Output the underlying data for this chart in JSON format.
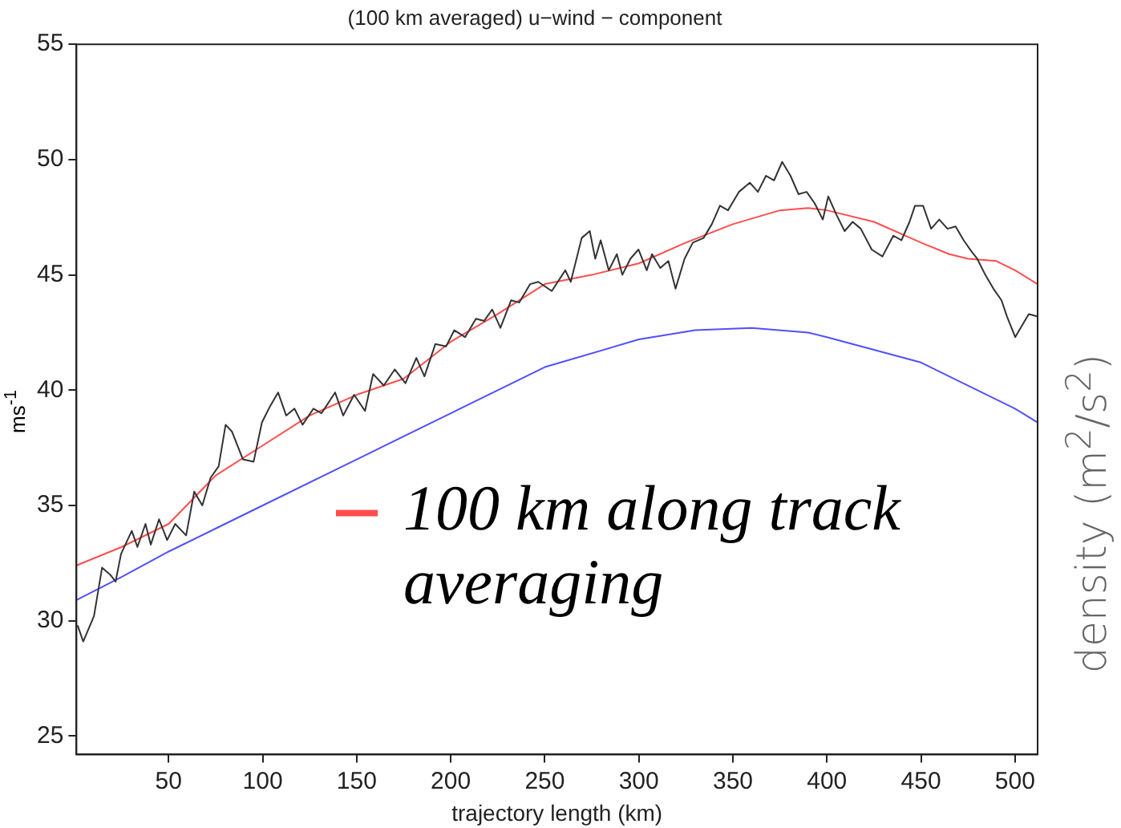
{
  "chart_data": {
    "type": "line",
    "title": "(100 km averaged) u−wind − component",
    "xlabel": "trajectory length (km)",
    "ylabel": "ms$^{-1}$",
    "xlim": [
      1,
      512
    ],
    "xticks": [
      50,
      100,
      150,
      200,
      250,
      300,
      350,
      400,
      450,
      500
    ],
    "ylim": [
      24.2,
      55
    ],
    "yticks": [
      25,
      30,
      35,
      40,
      45,
      50,
      55
    ],
    "grid": false,
    "legend": "center",
    "marker": "none",
    "line_style": "solid",
    "annotations": [
      "density (m$^{2}$/s$^{2}$)"
    ],
    "series": [
      {
        "color": "#333333",
        "x": [
          1.6,
          4.6,
          10.3,
          14.6,
          18.9,
          21.8,
          24.7,
          30.4,
          33.4,
          37.7,
          40.5,
          44.9,
          49.2,
          53.5,
          59.3,
          63.6,
          67.9,
          72.3,
          76.6,
          80.3,
          83.7,
          89.5,
          95.2,
          99.6,
          103.9,
          108.2,
          112.5,
          116.9,
          121.2,
          127,
          131.3,
          138.5,
          142.8,
          148.6,
          154.4,
          158.7,
          164.4,
          170.2,
          175.9,
          181.7,
          186,
          191.8,
          197.5,
          201.9,
          207.6,
          213.4,
          217.7,
          222,
          226.4,
          232.1,
          236.4,
          242.2,
          246.5,
          253.7,
          260.9,
          263.8,
          269.6,
          273.9,
          276.8,
          279.7,
          284,
          288.3,
          291.2,
          295.5,
          299.8,
          304.2,
          307,
          311.4,
          315.7,
          319.5,
          324.3,
          328.7,
          334.4,
          338.8,
          343.1,
          347.4,
          353.2,
          359,
          363.3,
          367.6,
          371.9,
          376.2,
          380.6,
          384.9,
          389.2,
          393.5,
          397.8,
          400.7,
          405.1,
          409.4,
          413.7,
          418,
          423.8,
          429.5,
          435.3,
          439.6,
          443.9,
          446.8,
          451.1,
          455.4,
          459.7,
          464.1,
          468.4,
          472.7,
          477,
          479.9,
          484.2,
          488.5,
          492.8,
          495.7,
          500.1,
          504.4,
          507.3,
          511.6
        ],
        "values": [
          29.8,
          29.1,
          30.2,
          32.3,
          32.0,
          31.7,
          32.9,
          33.9,
          33.2,
          34.2,
          33.3,
          34.4,
          33.5,
          34.2,
          33.7,
          35.6,
          35.0,
          36.2,
          36.7,
          38.5,
          38.2,
          37.0,
          36.9,
          38.6,
          39.3,
          39.9,
          38.9,
          39.2,
          38.5,
          39.2,
          39.0,
          39.9,
          38.9,
          39.8,
          39.1,
          40.7,
          40.2,
          40.9,
          40.3,
          41.4,
          40.6,
          42.0,
          41.9,
          42.6,
          42.3,
          43.1,
          43.0,
          43.5,
          42.7,
          43.9,
          43.8,
          44.6,
          44.7,
          44.3,
          45.2,
          44.7,
          46.6,
          46.9,
          45.7,
          46.5,
          45.2,
          45.9,
          45.0,
          45.7,
          46.1,
          45.2,
          45.9,
          45.3,
          45.6,
          44.4,
          45.7,
          46.4,
          46.6,
          47.2,
          48.0,
          47.8,
          48.6,
          49.0,
          48.6,
          49.3,
          49.1,
          49.9,
          49.3,
          48.5,
          48.6,
          48.1,
          47.4,
          48.4,
          47.6,
          46.9,
          47.3,
          47.0,
          46.1,
          45.8,
          46.7,
          46.5,
          47.3,
          48.0,
          48.0,
          47.0,
          47.4,
          47.0,
          47.1,
          46.5,
          46.0,
          45.7,
          45.0,
          44.4,
          43.9,
          43.2,
          42.3,
          42.9,
          43.3,
          43.2
        ]
      },
      {
        "name": "100 km along track averaging",
        "color": "#ff4d4d",
        "x": [
          1,
          25,
          50,
          75,
          100,
          125,
          150,
          175,
          200,
          225,
          250,
          275,
          300,
          325,
          350,
          375,
          390,
          400,
          425,
          450,
          465,
          475,
          490,
          500,
          512
        ],
        "values": [
          32.4,
          33.2,
          34.2,
          36.3,
          37.6,
          38.9,
          39.8,
          40.5,
          42.1,
          43.3,
          44.6,
          45.0,
          45.5,
          46.4,
          47.2,
          47.8,
          47.9,
          47.8,
          47.3,
          46.4,
          45.9,
          45.7,
          45.6,
          45.2,
          44.6
        ]
      },
      {
        "color": "#5050ff",
        "x": [
          1,
          25,
          50,
          75,
          100,
          150,
          200,
          250,
          300,
          330,
          360,
          390,
          400,
          450,
          500,
          512
        ],
        "values": [
          30.9,
          31.9,
          33.0,
          34.0,
          35.0,
          37.0,
          39.0,
          41.0,
          42.2,
          42.6,
          42.7,
          42.5,
          42.3,
          41.2,
          39.2,
          38.6
        ]
      }
    ]
  }
}
